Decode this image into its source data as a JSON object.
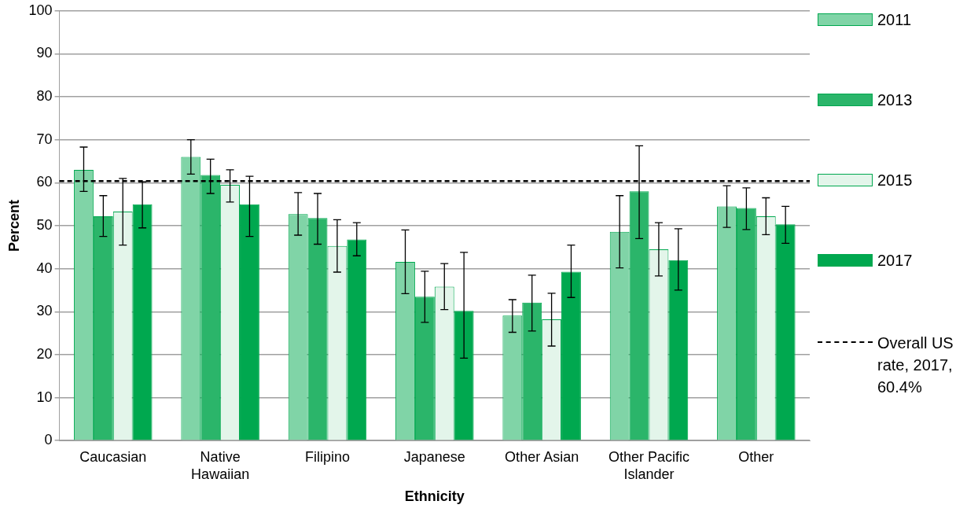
{
  "chart_data": {
    "type": "bar",
    "xlabel": "Ethnicity",
    "ylabel": "Percent",
    "categories": [
      "Caucasian",
      "Native Hawaiian",
      "Filipino",
      "Japanese",
      "Other Asian",
      "Other Pacific Islander",
      "Other"
    ],
    "series": [
      {
        "name": "2011",
        "color": "#80d4a7",
        "values": [
          63,
          66,
          52.7,
          41.6,
          29.1,
          48.6,
          54.5
        ],
        "errors": [
          [
            58,
            68.3
          ],
          [
            62,
            70
          ],
          [
            47.8,
            57.7
          ],
          [
            34.2,
            49
          ],
          [
            25.2,
            32.8
          ],
          [
            40.2,
            57
          ],
          [
            49.6,
            59.3
          ]
        ]
      },
      {
        "name": "2013",
        "color": "#2bb56a",
        "values": [
          52.2,
          61.8,
          51.8,
          33.5,
          32.1,
          58,
          54.1
        ],
        "errors": [
          [
            47.5,
            57
          ],
          [
            57.5,
            65.5
          ],
          [
            45.7,
            57.5
          ],
          [
            27.5,
            39.4
          ],
          [
            25.5,
            38.5
          ],
          [
            47,
            68.6
          ],
          [
            49.1,
            58.8
          ]
        ]
      },
      {
        "name": "2015",
        "color": "#e3f5ea",
        "values": [
          53.3,
          59.5,
          45.3,
          35.8,
          28.2,
          44.5,
          52.2
        ],
        "errors": [
          [
            45.5,
            61
          ],
          [
            55.5,
            63
          ],
          [
            39.2,
            51.4
          ],
          [
            30.5,
            41.2
          ],
          [
            22,
            34.3
          ],
          [
            38.3,
            50.7
          ],
          [
            47.9,
            56.5
          ]
        ]
      },
      {
        "name": "2017",
        "color": "#00a84f",
        "values": [
          55,
          55,
          46.8,
          30.2,
          39.3,
          42,
          50.3
        ],
        "errors": [
          [
            49.5,
            60.2
          ],
          [
            47.5,
            61.5
          ],
          [
            43,
            50.7
          ],
          [
            19.2,
            43.8
          ],
          [
            33.3,
            45.5
          ],
          [
            35,
            49.3
          ],
          [
            45.9,
            54.5
          ]
        ]
      }
    ],
    "ylim": [
      0,
      100
    ],
    "yticks": [
      0,
      10,
      20,
      30,
      40,
      50,
      60,
      70,
      80,
      90,
      100
    ],
    "grid": "y",
    "legend": "right",
    "ref_lines": [
      {
        "axis": "y",
        "value": 60.4,
        "label": "Overall US rate, 2017, 60.4%",
        "color": "#000000",
        "line_style": "dashed"
      }
    ]
  }
}
